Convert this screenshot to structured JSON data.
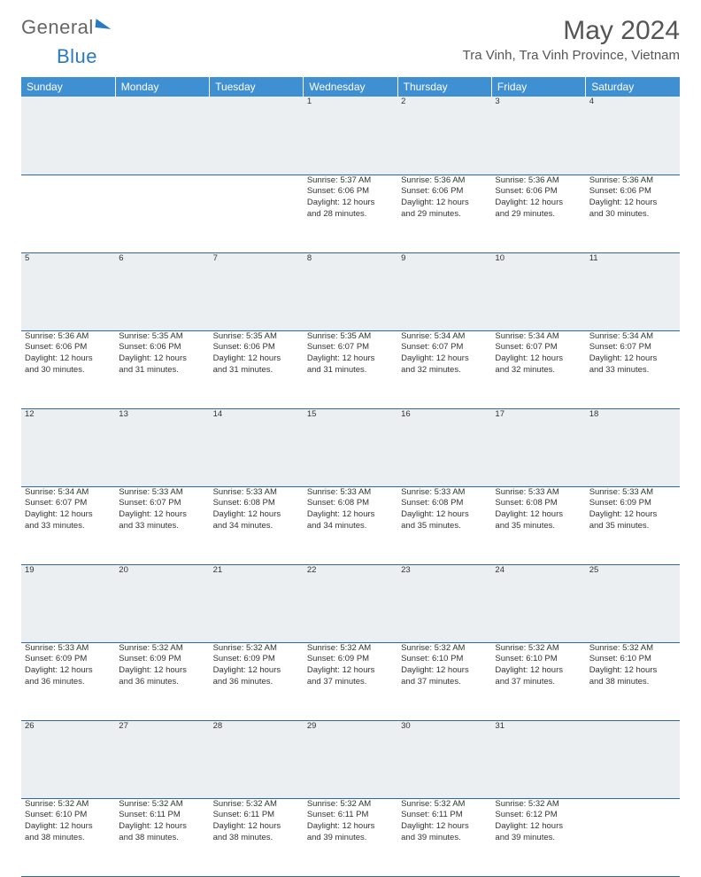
{
  "logo": {
    "part1": "General",
    "part2": "Blue"
  },
  "title": "May 2024",
  "location": "Tra Vinh, Tra Vinh Province, Vietnam",
  "colors": {
    "header_bg": "#3f8fd3",
    "header_text": "#ffffff",
    "row_divider": "#2a6aa8",
    "daynum_bg": "#eceff1",
    "daynum_text": "#6b7280",
    "body_text": "#333333",
    "logo_blue": "#2a7ac0",
    "logo_gray": "#666666"
  },
  "typography": {
    "title_fontsize": 30,
    "location_fontsize": 15,
    "dayheader_fontsize": 12,
    "daynum_fontsize": 11,
    "cell_fontsize": 9.5
  },
  "weekdays": [
    "Sunday",
    "Monday",
    "Tuesday",
    "Wednesday",
    "Thursday",
    "Friday",
    "Saturday"
  ],
  "weeks": [
    [
      null,
      null,
      null,
      {
        "n": "1",
        "sr": "Sunrise: 5:37 AM",
        "ss": "Sunset: 6:06 PM",
        "d1": "Daylight: 12 hours",
        "d2": "and 28 minutes."
      },
      {
        "n": "2",
        "sr": "Sunrise: 5:36 AM",
        "ss": "Sunset: 6:06 PM",
        "d1": "Daylight: 12 hours",
        "d2": "and 29 minutes."
      },
      {
        "n": "3",
        "sr": "Sunrise: 5:36 AM",
        "ss": "Sunset: 6:06 PM",
        "d1": "Daylight: 12 hours",
        "d2": "and 29 minutes."
      },
      {
        "n": "4",
        "sr": "Sunrise: 5:36 AM",
        "ss": "Sunset: 6:06 PM",
        "d1": "Daylight: 12 hours",
        "d2": "and 30 minutes."
      }
    ],
    [
      {
        "n": "5",
        "sr": "Sunrise: 5:36 AM",
        "ss": "Sunset: 6:06 PM",
        "d1": "Daylight: 12 hours",
        "d2": "and 30 minutes."
      },
      {
        "n": "6",
        "sr": "Sunrise: 5:35 AM",
        "ss": "Sunset: 6:06 PM",
        "d1": "Daylight: 12 hours",
        "d2": "and 31 minutes."
      },
      {
        "n": "7",
        "sr": "Sunrise: 5:35 AM",
        "ss": "Sunset: 6:06 PM",
        "d1": "Daylight: 12 hours",
        "d2": "and 31 minutes."
      },
      {
        "n": "8",
        "sr": "Sunrise: 5:35 AM",
        "ss": "Sunset: 6:07 PM",
        "d1": "Daylight: 12 hours",
        "d2": "and 31 minutes."
      },
      {
        "n": "9",
        "sr": "Sunrise: 5:34 AM",
        "ss": "Sunset: 6:07 PM",
        "d1": "Daylight: 12 hours",
        "d2": "and 32 minutes."
      },
      {
        "n": "10",
        "sr": "Sunrise: 5:34 AM",
        "ss": "Sunset: 6:07 PM",
        "d1": "Daylight: 12 hours",
        "d2": "and 32 minutes."
      },
      {
        "n": "11",
        "sr": "Sunrise: 5:34 AM",
        "ss": "Sunset: 6:07 PM",
        "d1": "Daylight: 12 hours",
        "d2": "and 33 minutes."
      }
    ],
    [
      {
        "n": "12",
        "sr": "Sunrise: 5:34 AM",
        "ss": "Sunset: 6:07 PM",
        "d1": "Daylight: 12 hours",
        "d2": "and 33 minutes."
      },
      {
        "n": "13",
        "sr": "Sunrise: 5:33 AM",
        "ss": "Sunset: 6:07 PM",
        "d1": "Daylight: 12 hours",
        "d2": "and 33 minutes."
      },
      {
        "n": "14",
        "sr": "Sunrise: 5:33 AM",
        "ss": "Sunset: 6:08 PM",
        "d1": "Daylight: 12 hours",
        "d2": "and 34 minutes."
      },
      {
        "n": "15",
        "sr": "Sunrise: 5:33 AM",
        "ss": "Sunset: 6:08 PM",
        "d1": "Daylight: 12 hours",
        "d2": "and 34 minutes."
      },
      {
        "n": "16",
        "sr": "Sunrise: 5:33 AM",
        "ss": "Sunset: 6:08 PM",
        "d1": "Daylight: 12 hours",
        "d2": "and 35 minutes."
      },
      {
        "n": "17",
        "sr": "Sunrise: 5:33 AM",
        "ss": "Sunset: 6:08 PM",
        "d1": "Daylight: 12 hours",
        "d2": "and 35 minutes."
      },
      {
        "n": "18",
        "sr": "Sunrise: 5:33 AM",
        "ss": "Sunset: 6:09 PM",
        "d1": "Daylight: 12 hours",
        "d2": "and 35 minutes."
      }
    ],
    [
      {
        "n": "19",
        "sr": "Sunrise: 5:33 AM",
        "ss": "Sunset: 6:09 PM",
        "d1": "Daylight: 12 hours",
        "d2": "and 36 minutes."
      },
      {
        "n": "20",
        "sr": "Sunrise: 5:32 AM",
        "ss": "Sunset: 6:09 PM",
        "d1": "Daylight: 12 hours",
        "d2": "and 36 minutes."
      },
      {
        "n": "21",
        "sr": "Sunrise: 5:32 AM",
        "ss": "Sunset: 6:09 PM",
        "d1": "Daylight: 12 hours",
        "d2": "and 36 minutes."
      },
      {
        "n": "22",
        "sr": "Sunrise: 5:32 AM",
        "ss": "Sunset: 6:09 PM",
        "d1": "Daylight: 12 hours",
        "d2": "and 37 minutes."
      },
      {
        "n": "23",
        "sr": "Sunrise: 5:32 AM",
        "ss": "Sunset: 6:10 PM",
        "d1": "Daylight: 12 hours",
        "d2": "and 37 minutes."
      },
      {
        "n": "24",
        "sr": "Sunrise: 5:32 AM",
        "ss": "Sunset: 6:10 PM",
        "d1": "Daylight: 12 hours",
        "d2": "and 37 minutes."
      },
      {
        "n": "25",
        "sr": "Sunrise: 5:32 AM",
        "ss": "Sunset: 6:10 PM",
        "d1": "Daylight: 12 hours",
        "d2": "and 38 minutes."
      }
    ],
    [
      {
        "n": "26",
        "sr": "Sunrise: 5:32 AM",
        "ss": "Sunset: 6:10 PM",
        "d1": "Daylight: 12 hours",
        "d2": "and 38 minutes."
      },
      {
        "n": "27",
        "sr": "Sunrise: 5:32 AM",
        "ss": "Sunset: 6:11 PM",
        "d1": "Daylight: 12 hours",
        "d2": "and 38 minutes."
      },
      {
        "n": "28",
        "sr": "Sunrise: 5:32 AM",
        "ss": "Sunset: 6:11 PM",
        "d1": "Daylight: 12 hours",
        "d2": "and 38 minutes."
      },
      {
        "n": "29",
        "sr": "Sunrise: 5:32 AM",
        "ss": "Sunset: 6:11 PM",
        "d1": "Daylight: 12 hours",
        "d2": "and 39 minutes."
      },
      {
        "n": "30",
        "sr": "Sunrise: 5:32 AM",
        "ss": "Sunset: 6:11 PM",
        "d1": "Daylight: 12 hours",
        "d2": "and 39 minutes."
      },
      {
        "n": "31",
        "sr": "Sunrise: 5:32 AM",
        "ss": "Sunset: 6:12 PM",
        "d1": "Daylight: 12 hours",
        "d2": "and 39 minutes."
      },
      null
    ]
  ]
}
